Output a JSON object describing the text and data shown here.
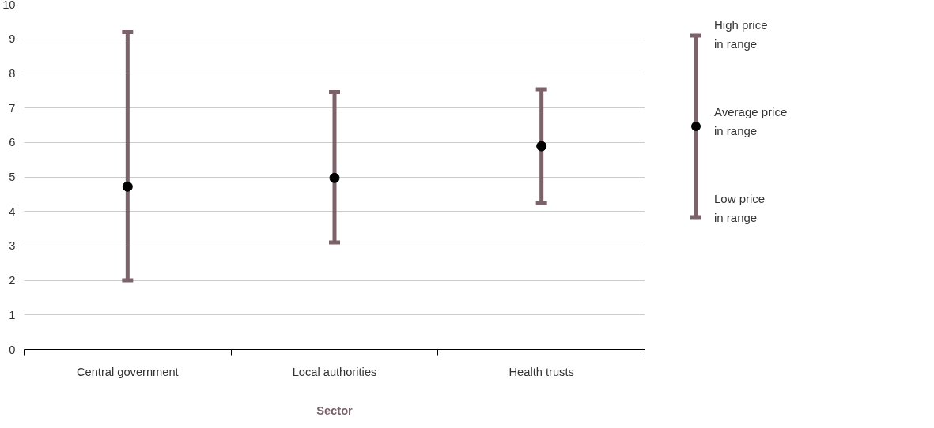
{
  "chart_data": {
    "type": "scatter",
    "xlabel": "Sector",
    "categories": [
      "Central government",
      "Local authorities",
      "Health trusts"
    ],
    "series": [
      {
        "color": "#000000",
        "values": [
          4.72,
          4.97,
          5.89
        ],
        "errors": [
          [
            2.0,
            9.2
          ],
          [
            3.1,
            7.46
          ],
          [
            4.24,
            7.54
          ]
        ]
      }
    ],
    "ylim": [
      0,
      10
    ],
    "yticks": [
      0,
      1,
      2,
      3,
      4,
      5,
      6,
      7,
      8,
      9,
      10
    ],
    "grid": "y",
    "marker": "circle",
    "annotations": [
      "High price\nin range",
      "Average price\nin range",
      "Low price\nin range"
    ]
  }
}
